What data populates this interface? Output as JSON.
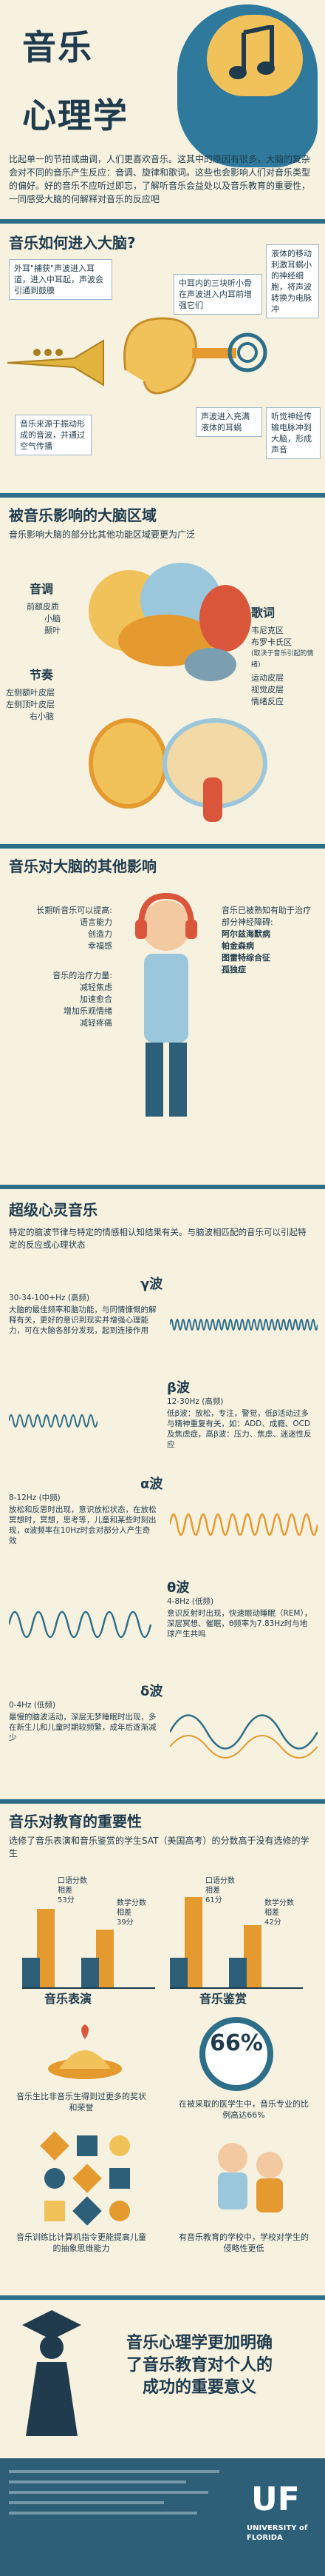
{
  "header": {
    "title_line1": "音乐",
    "title_line2": "心理学",
    "intro": "比起单一的节拍或曲调，人们更喜欢音乐。这其中的原因有很多，大脑的复杂会对不同的音乐产生反应：音调、旋律和歌词。这些也会影响人们对音乐类型的偏好。好的音乐不应听过即忘，了解听音乐会益处以及音乐教育的重要性，一同感受大脑的何解释对音乐的反应吧"
  },
  "how": {
    "title": "音乐如何进入大脑?",
    "notes": [
      "外耳\"捕获\"声波进入耳道，进入中耳起，声波会引通到鼓膜",
      "中耳内的三块听小骨在声波进入内耳前增强它们",
      "液体的移动刺激耳蜗小的神经细胞，将声波转换为电脉冲",
      "音乐来源于振动形成的音波，并通过空气传播",
      "声波进入充满液体的耳蜗",
      "听觉神经传输电脉冲到大脑，形成声音"
    ]
  },
  "regions": {
    "title": "被音乐影响的大脑区域",
    "subtitle": "音乐影响大脑的部分比其他功能区域要更为广泛",
    "labels": [
      "音调",
      "前额皮质",
      "小脑",
      "颞叶",
      "节奏",
      "左侧额叶皮层",
      "左侧顶叶皮层",
      "右小脑",
      "歌词",
      "韦尼克区",
      "布罗卡氏区",
      "(取决于音乐引起的情绪)",
      "运动皮层",
      "视觉皮层",
      "情绪反应"
    ]
  },
  "effects": {
    "title": "音乐对大脑的其他影响",
    "left_heading": "长期听音乐可以提高:",
    "left_items": [
      "语言能力",
      "创造力",
      "幸福感"
    ],
    "left_heading2": "音乐的治疗力量:",
    "left_items2": [
      "减轻焦虑",
      "加速愈合",
      "增加乐观情绪",
      "减轻疼痛"
    ],
    "right_heading": "音乐已被熟知有助于治疗部分神经障碍:",
    "right_items": [
      "阿尔兹海默病",
      "帕金森病",
      "图雷特综合征",
      "孤独症"
    ]
  },
  "waves": {
    "title": "超级心灵音乐",
    "intro": "特定的脑波节律与特定的情感相认知结果有关。与脑波相匹配的音乐可以引起特定的反应或心理状态",
    "rows": [
      {
        "name": "γ波",
        "freq": "30-34-100+Hz (高频)",
        "text": "大脑的最佳频率和脑功能，与同情慷慨的解释有关，更好的意识到现实并增强心理能力，可在大脑各部分发现，起到连接作用"
      },
      {
        "name": "β波",
        "freq": "12-30Hz (高频)",
        "text": "低β波：放松，专注，警觉，低β活动过多与精神重复有关，如：ADD、成瘾、OCD及焦虑症，高β波：压力、焦虑、迷迷性反应"
      },
      {
        "name": "α波",
        "freq": "8-12Hz (中频)",
        "text": "放松和反思时出现，意识放松状态，在放松冥想时，冥想，思考等，儿童和某些时刻出现，α波频率在10Hz时会对部分人产生奇效"
      },
      {
        "name": "θ波",
        "freq": "4-8Hz (低频)",
        "text": "意识反射时出现，快速眼动睡眠（REM），深层冥想、催眠，θ频率为7.83Hz时与地球产生共鸣"
      },
      {
        "name": "δ波",
        "freq": "0-4Hz (低频)",
        "text": "最慢的脑波活动，深层无梦睡眠时出现，多在新生儿和儿童时期较频繁，成年后逐渐减少"
      }
    ]
  },
  "education": {
    "title": "音乐对教育的重要性",
    "subtitle": "选修了音乐表演和音乐鉴赏的学生SAT（美国高考）的分数高于没有选修的学生",
    "chart_data": [
      {
        "type": "bar",
        "title": "音乐表演",
        "series": [
          {
            "name": "口语分数",
            "values": [
              53,
              39
            ]
          },
          {
            "name": "数学分数",
            "values": [
              39,
              39
            ]
          }
        ],
        "bars": [
          {
            "label": "口语分数\n相差\n53分",
            "value": 53,
            "color": "#e59a2f"
          },
          {
            "label": "数学分数\n相差\n39分",
            "value": 39,
            "color": "#e59a2f"
          }
        ]
      },
      {
        "type": "bar",
        "title": "音乐鉴赏",
        "bars": [
          {
            "label": "口语分数\n相差\n61分",
            "value": 61,
            "color": "#e59a2f"
          },
          {
            "label": "数学分数\n相差\n42分",
            "value": 42,
            "color": "#e59a2f"
          }
        ]
      }
    ],
    "cells": [
      "音乐生比非音乐生得到过更多的奖状和荣誉",
      "在被采取的医学生中，音乐专业的比例高达66%",
      "音乐训练比计算机指令更能提高儿童的抽象思维能力",
      "有音乐教育的学校中，学校对学生的侵略性更低"
    ],
    "percent": "66%"
  },
  "conclusion": {
    "text_line1": "音乐心理学更加明确",
    "text_line2": "了音乐教育对个人的",
    "text_line3": "成功的重要意义"
  },
  "footer": {
    "logo_letters": "UF",
    "logo_text": "UNIVERSITY of FLORIDA"
  },
  "colors": {
    "background": "#f7f1df",
    "navy": "#1f3b4d",
    "teal": "#2d6e88",
    "orange": "#e59a2f",
    "yellow": "#f1c25a"
  }
}
